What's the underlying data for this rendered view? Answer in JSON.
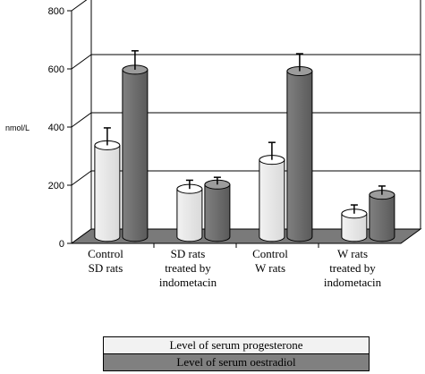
{
  "chart_data": {
    "type": "bar",
    "ylabel": "nmol/L",
    "ylim": [
      0,
      800
    ],
    "yticks": [
      "0",
      "200",
      "400",
      "600",
      "800"
    ],
    "categories": [
      [
        "Control",
        "SD rats"
      ],
      [
        "SD rats",
        "treated by",
        "indometacin"
      ],
      [
        "Control",
        "W rats"
      ],
      [
        "W rats",
        "treated by",
        "indometacin"
      ]
    ],
    "series": [
      {
        "name": "Level of serum progesterone",
        "values": [
          315,
          165,
          265,
          80
        ],
        "errors": [
          60,
          30,
          60,
          30
        ],
        "color": "#f2f2f2"
      },
      {
        "name": "Level of serum oestradiol",
        "values": [
          575,
          180,
          570,
          145
        ],
        "errors": [
          65,
          25,
          60,
          30
        ],
        "color": "#808080"
      }
    ],
    "grid": true,
    "legend_position": "bottom",
    "style": "3d"
  }
}
